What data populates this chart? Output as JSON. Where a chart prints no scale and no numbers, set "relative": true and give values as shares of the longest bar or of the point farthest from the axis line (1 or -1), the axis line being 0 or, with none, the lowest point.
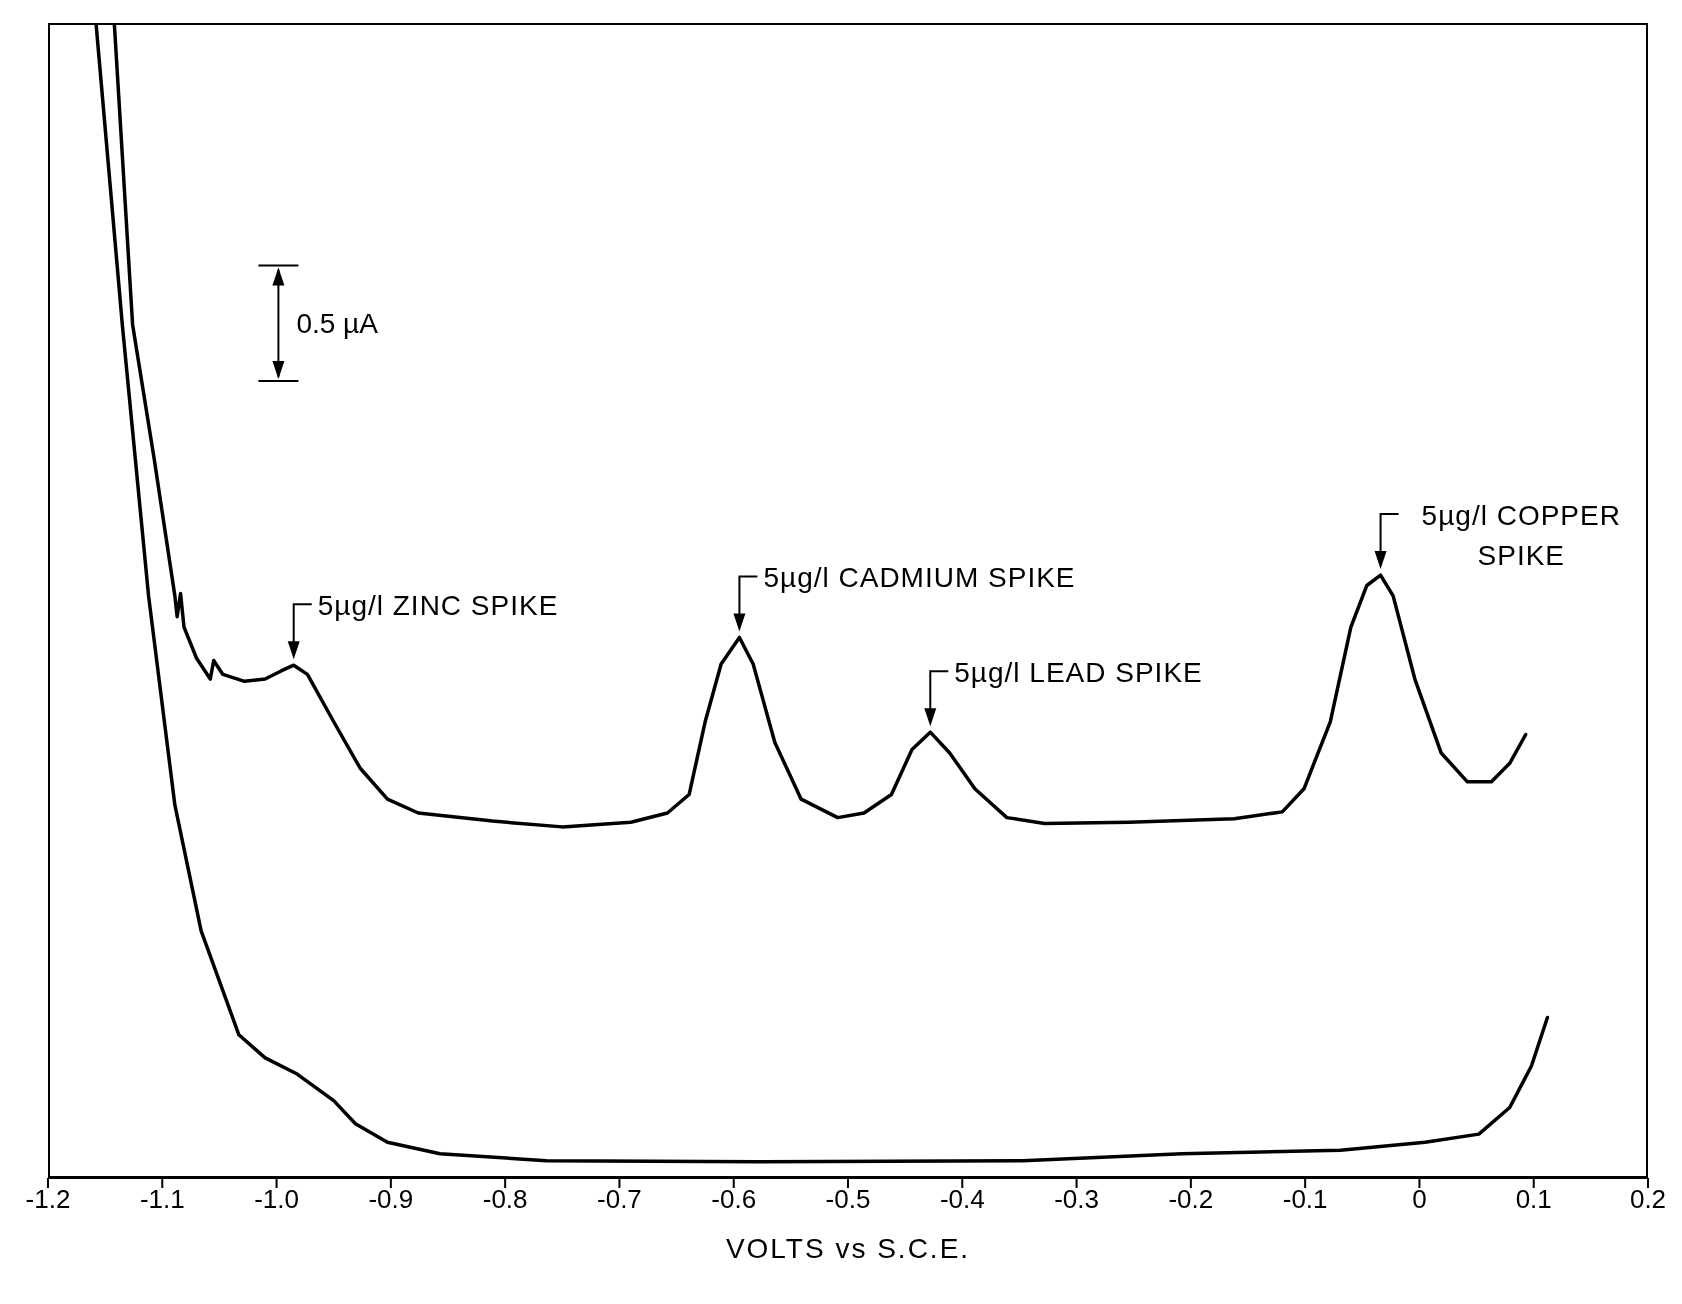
{
  "chart_data": {
    "type": "line",
    "relative": true,
    "xlabel": "VOLTS vs S.C.E.",
    "xlim": [
      -1.2,
      0.2
    ],
    "xticks": [
      -1.2,
      -1.1,
      {
        "value": -1,
        "label": "-1.0"
      },
      -0.9,
      -0.8,
      -0.7,
      -0.6,
      -0.5,
      -0.4,
      -0.3,
      -0.2,
      -0.1,
      0,
      0.1,
      0.2
    ],
    "marker": "none",
    "line_style": "solid",
    "series": [
      {
        "color": "#000000",
        "x": [
          -1.142,
          -1.126,
          -1.107,
          -1.089,
          -1.087,
          -1.084,
          -1.081,
          -1.07,
          -1.058,
          -1.055,
          -1.047,
          -1.028,
          -1.01,
          -0.996,
          -0.985,
          -0.973,
          -0.95,
          -0.927,
          -0.903,
          -0.876,
          -0.811,
          -0.75,
          -0.69,
          -0.658,
          -0.639,
          -0.625,
          -0.611,
          -0.595,
          -0.583,
          -0.564,
          -0.541,
          -0.509,
          -0.486,
          -0.462,
          -0.444,
          -0.428,
          -0.411,
          -0.389,
          -0.361,
          -0.328,
          -0.254,
          -0.162,
          -0.12,
          -0.101,
          -0.078,
          -0.06,
          -0.046,
          -0.034,
          -0.023,
          -0.004,
          0.019,
          0.042,
          0.063,
          0.079,
          0.093
        ],
        "values": [
          1.0,
          0.739,
          0.622,
          0.504,
          0.486,
          0.506,
          0.477,
          0.45,
          0.432,
          0.448,
          0.436,
          0.43,
          0.432,
          0.439,
          0.444,
          0.436,
          0.395,
          0.355,
          0.328,
          0.316,
          0.309,
          0.304,
          0.308,
          0.316,
          0.332,
          0.395,
          0.445,
          0.468,
          0.445,
          0.377,
          0.328,
          0.312,
          0.316,
          0.332,
          0.371,
          0.386,
          0.368,
          0.337,
          0.312,
          0.307,
          0.308,
          0.311,
          0.317,
          0.337,
          0.395,
          0.477,
          0.513,
          0.522,
          0.504,
          0.432,
          0.368,
          0.343,
          0.343,
          0.359,
          0.384
        ]
      },
      {
        "color": "#000000",
        "x": [
          -1.158,
          -1.135,
          -1.112,
          -1.089,
          -1.066,
          -1.033,
          -1.01,
          -0.982,
          -0.95,
          -0.931,
          -0.903,
          -0.857,
          -0.764,
          -0.579,
          -0.347,
          -0.208,
          -0.069,
          0.005,
          0.052,
          0.079,
          0.098,
          0.112
        ],
        "values": [
          1.0,
          0.739,
          0.504,
          0.323,
          0.214,
          0.124,
          0.104,
          0.09,
          0.067,
          0.047,
          0.031,
          0.021,
          0.015,
          0.014,
          0.015,
          0.021,
          0.024,
          0.031,
          0.038,
          0.061,
          0.097,
          0.139
        ]
      }
    ],
    "annotations": [
      "0.5 µA",
      {
        "text": "5µg/l ZINC SPIKE",
        "x": -0.985,
        "y": 0.444
      },
      {
        "text": "5µg/l CADMIUM SPIKE",
        "x": -0.595,
        "y": 0.468
      },
      {
        "text": "5µg/l LEAD SPIKE",
        "x": -0.428,
        "y": 0.386
      },
      {
        "text": "5µg/l COPPER SPIKE",
        "x": -0.034,
        "y": 0.522
      }
    ]
  }
}
